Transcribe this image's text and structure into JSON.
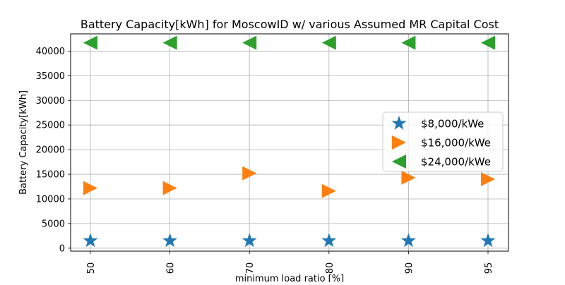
{
  "chart_data": {
    "type": "scatter",
    "title": "Battery Capacity[kWh] for MoscowID w/ various Assumed MR Capital Cost",
    "xlabel": "minimum load ratio [%]",
    "ylabel": "Battery Capacity[kWh]",
    "categories": [
      "50",
      "60",
      "70",
      "80",
      "90",
      "95"
    ],
    "ylim": [
      -600,
      43500
    ],
    "y_ticks": [
      0,
      5000,
      10000,
      15000,
      20000,
      25000,
      30000,
      35000,
      40000
    ],
    "grid": true,
    "legend_position": "center-right",
    "series": [
      {
        "name": "$8,000/kWe",
        "marker": "star",
        "color": "#1f77b4",
        "values": [
          1500,
          1500,
          1500,
          1500,
          1500,
          1500
        ]
      },
      {
        "name": "$16,000/kWe",
        "marker": "triangle-right",
        "color": "#ff7f0e",
        "values": [
          12200,
          12200,
          15200,
          11600,
          14300,
          14000
        ]
      },
      {
        "name": "$24,000/kWe",
        "marker": "triangle-left",
        "color": "#2ca02c",
        "values": [
          41700,
          41700,
          41700,
          41700,
          41700,
          41700
        ]
      }
    ]
  }
}
